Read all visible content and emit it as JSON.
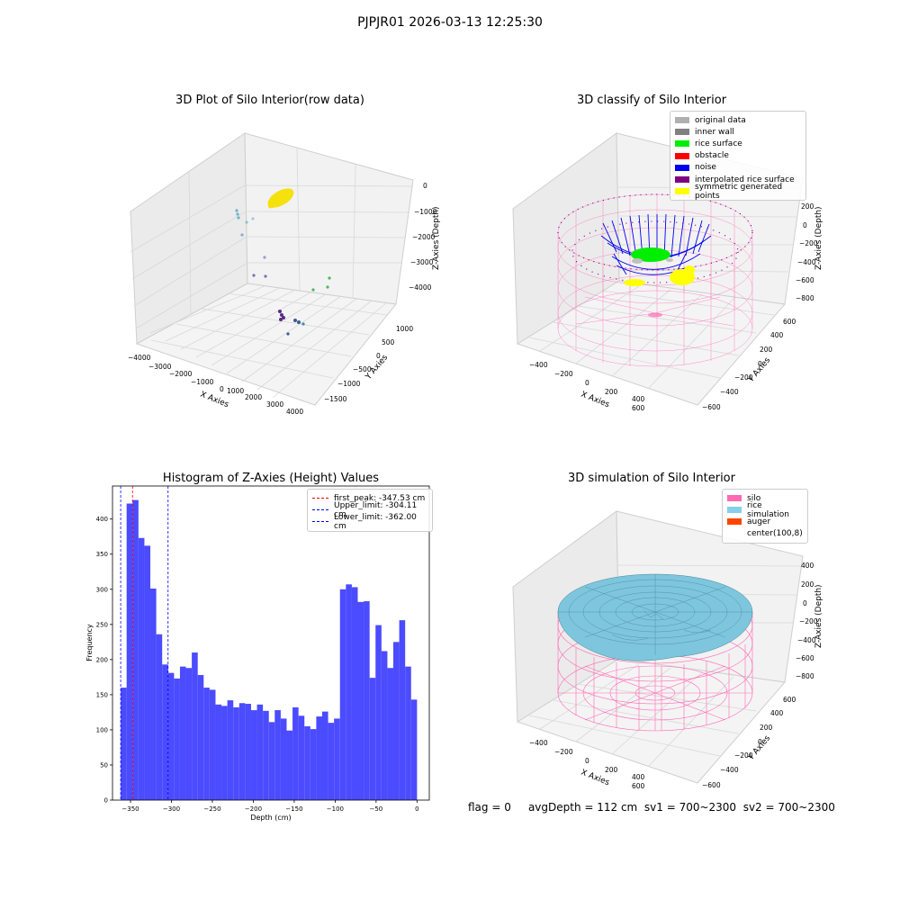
{
  "suptitle": "PJPJR01 2026-03-13 12:25:30",
  "status": {
    "flag": "flag = 0",
    "avg_depth": "avgDepth = 112 cm",
    "sv1": "sv1 = 700~2300",
    "sv2": "sv2 = 700~2300"
  },
  "chart_data": [
    {
      "type": "scatter",
      "title": "3D Plot of Silo Interior(row data)",
      "xlabel": "X Axies",
      "ylabel": "Y Axies",
      "zlabel": "Z-Axies (Depth)",
      "xticks": [
        "−4000",
        "−3000",
        "−2000",
        "−1000",
        "0",
        "1000",
        "2000",
        "3000",
        "4000"
      ],
      "yticks": [
        "−1500",
        "−1000",
        "−500",
        "0",
        "500",
        "1000"
      ],
      "zticks": [
        "−4000",
        "−3000",
        "−2000",
        "−1000",
        "0"
      ],
      "xlim": [
        -4000,
        4000
      ],
      "ylim": [
        -1500,
        1000
      ],
      "zlim": [
        -4000,
        0
      ],
      "colors": {
        "rice_cluster": "#f5e10d",
        "points_low": "#5b2a86",
        "points_mid": "#3d8bb5",
        "points_high": "#4cb85c"
      }
    },
    {
      "type": "scatter",
      "title": "3D classify of Silo Interior",
      "xlabel": "X Axies",
      "ylabel": "Y Axies",
      "zlabel": "Z-Axies (Depth)",
      "xticks": [
        "−400",
        "−200",
        "0",
        "200",
        "400",
        "600"
      ],
      "yticks": [
        "−600",
        "−400",
        "−200",
        "0",
        "200",
        "400",
        "600"
      ],
      "zticks": [
        "−800",
        "−600",
        "−400",
        "−200",
        "0",
        "200"
      ],
      "legend": [
        {
          "label": "original data",
          "color": "#b0b0b0"
        },
        {
          "label": "inner wall",
          "color": "#808080"
        },
        {
          "label": "rice surface",
          "color": "#00ee00"
        },
        {
          "label": "obstacle",
          "color": "#ff0000"
        },
        {
          "label": "noise",
          "color": "#0000ee"
        },
        {
          "label": "interpolated rice surface",
          "color": "#800080"
        },
        {
          "label": "symmetric generated points",
          "color": "#ffff00"
        }
      ],
      "colors": {
        "silo_wire": "#ff69b4"
      }
    },
    {
      "type": "bar",
      "title": "Histogram of Z-Axies (Height) Values",
      "xlabel": "Depth (cm)",
      "ylabel": "Frequency",
      "xlim": [
        -372,
        15
      ],
      "ylim": [
        0,
        447
      ],
      "xticks": [
        -350,
        -300,
        -250,
        -200,
        -150,
        -100,
        -50,
        0
      ],
      "xtick_labels": [
        "−350",
        "−300",
        "−250",
        "−200",
        "−150",
        "−100",
        "−50",
        "0"
      ],
      "yticks": [
        0,
        50,
        100,
        150,
        200,
        250,
        300,
        350,
        400
      ],
      "bin_start": -362,
      "bin_width": 7.24,
      "values": [
        160,
        422,
        427,
        373,
        362,
        301,
        236,
        193,
        181,
        173,
        190,
        188,
        210,
        178,
        160,
        157,
        136,
        134,
        142,
        132,
        138,
        137,
        128,
        136,
        127,
        111,
        128,
        116,
        99,
        132,
        120,
        105,
        101,
        119,
        126,
        110,
        116,
        300,
        307,
        303,
        282,
        283,
        174,
        249,
        212,
        188,
        225,
        256,
        190,
        143
      ],
      "bar_color": "#4b4bff",
      "vlines": [
        {
          "value": -347.53,
          "label": "first_peak: -347.53 cm",
          "color": "#ff0000"
        },
        {
          "value": -304.11,
          "label": "Upper_limit: -304.11 cm",
          "color": "#0000ff"
        },
        {
          "value": -362.0,
          "label": "Lower_limit: -362.00 cm",
          "color": "#0000ff"
        }
      ],
      "legend_position": "upper right"
    },
    {
      "type": "area",
      "title": "3D simulation of Silo Interior",
      "xlabel": "X Axies",
      "ylabel": "Y Axies",
      "zlabel": "Z-Axies (Depth)",
      "xticks": [
        "−400",
        "−200",
        "0",
        "200",
        "400",
        "600"
      ],
      "yticks": [
        "−600",
        "−400",
        "−200",
        "0",
        "200",
        "400",
        "600"
      ],
      "zticks": [
        "−800",
        "−600",
        "−400",
        "−200",
        "0",
        "200",
        "400"
      ],
      "legend": [
        {
          "label": "silo",
          "color": "#ff69b4"
        },
        {
          "label": "rice simulation",
          "color": "#87ceeb"
        },
        {
          "label": "auger",
          "color": "#ff4500"
        },
        {
          "label": "center(100,8)",
          "color": ""
        }
      ]
    }
  ]
}
